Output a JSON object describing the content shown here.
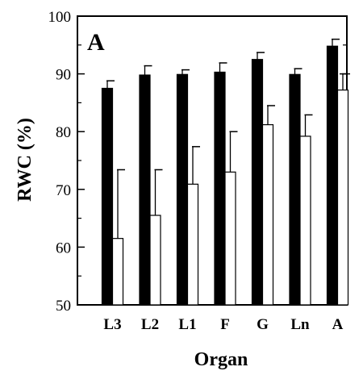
{
  "chart_data": {
    "type": "bar",
    "panel_label": "A",
    "xlabel": "Organ",
    "ylabel": "RWC (%)",
    "ylim": [
      50,
      100
    ],
    "yticks": [
      50,
      60,
      70,
      80,
      90,
      100
    ],
    "categories": [
      "L3",
      "L2",
      "L1",
      "F",
      "G",
      "Ln",
      "A"
    ],
    "series": [
      {
        "color": "#000000",
        "values": [
          87.5,
          89.8,
          89.9,
          90.3,
          92.5,
          89.9,
          94.8
        ],
        "errors": [
          1.3,
          1.6,
          0.8,
          1.6,
          1.2,
          1.0,
          1.2
        ]
      },
      {
        "color": "#ffffff",
        "values": [
          61.5,
          65.5,
          70.9,
          73.0,
          81.2,
          79.2,
          87.2
        ],
        "errors": [
          11.9,
          7.9,
          6.5,
          7.0,
          3.3,
          3.7,
          2.8
        ]
      }
    ],
    "grid": false,
    "legend": "none"
  }
}
